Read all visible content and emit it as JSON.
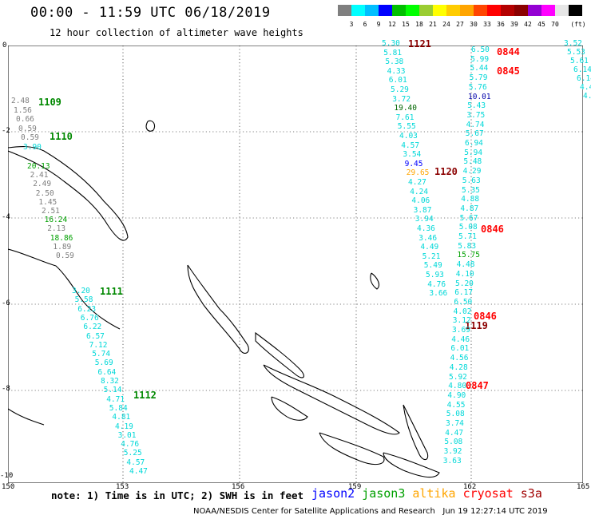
{
  "header": {
    "title": "00:00 - 11:59 UTC 06/18/2019",
    "subtitle": "12 hour collection of altimeter wave heights"
  },
  "colorbar": {
    "unit": "(ft)",
    "colors": [
      "#7f7f7f",
      "#00ffff",
      "#00bfff",
      "#0000ff",
      "#00bf00",
      "#00ff00",
      "#9acd32",
      "#ffff00",
      "#ffcc00",
      "#ffa500",
      "#ff4500",
      "#ff0000",
      "#b40000",
      "#8b0000",
      "#9400d3",
      "#ff00ff",
      "#e6e6e6",
      "#000000"
    ],
    "labels": [
      "3",
      "6",
      "9",
      "12",
      "15",
      "18",
      "21",
      "24",
      "27",
      "30",
      "33",
      "36",
      "39",
      "42",
      "45",
      "70"
    ]
  },
  "axes": {
    "lon_ticks": [
      "150",
      "153",
      "156",
      "159",
      "162",
      "165"
    ],
    "lat_ticks": [
      "0",
      "-2",
      "-4",
      "-6",
      "-8",
      "-10"
    ]
  },
  "tracks": {
    "jason3_west_upper": {
      "pass": "1109",
      "values": [
        "2.48",
        "1.56",
        "0.66",
        "0.59",
        "0.59",
        "3.90"
      ],
      "pass2": "1110",
      "values2": [
        "20.13",
        "2.41",
        "2.49",
        "2.50",
        "1.45",
        "2.51",
        "16.24",
        "2.13",
        "18.86",
        "1.89",
        "0.59"
      ]
    },
    "jason3_west_lower": {
      "pass": "1111",
      "values": [
        "3.20",
        "5.58",
        "6.23",
        "6.76",
        "6.22",
        "6.57",
        "7.12",
        "5.74",
        "5.69",
        "6.64",
        "8.32",
        "5.14",
        "4.71",
        "5.84",
        "4.81",
        "4.19",
        "3.01",
        "4.76",
        "5.25",
        "4.57",
        "4.47"
      ],
      "pass2": "1112"
    },
    "jason3_east": {
      "pass": "1121",
      "values": [
        "5.30",
        "5.81",
        "5.38",
        "4.33",
        "6.01",
        "5.29",
        "3.72",
        "19.40",
        "7.61",
        "5.55",
        "4.03",
        "4.57",
        "3.54",
        "9.45",
        "29.65",
        "4.27",
        "4.24",
        "4.06",
        "3.87",
        "3.94",
        "4.36",
        "3.46",
        "4.49",
        "5.21",
        "5.49",
        "5.93",
        "4.76",
        "3.66"
      ],
      "pass2": "1120",
      "pass3": "1119"
    },
    "cryosat": {
      "passes": [
        "0844",
        "0845",
        "0846",
        "0846",
        "0847"
      ],
      "values": [
        "6.50",
        "5.99",
        "5.44",
        "5.79",
        "5.76",
        "10.01",
        "5.43",
        "3.75",
        "4.74",
        "5.67",
        "6.94",
        "5.94",
        "5.48",
        "4.29",
        "5.63",
        "5.35",
        "4.88",
        "4.87",
        "5.67",
        "5.08",
        "5.71",
        "5.83",
        "15.75",
        "4.48",
        "4.10",
        "5.20",
        "6.17",
        "6.50",
        "4.02",
        "3.12",
        "3.69",
        "4.46",
        "6.01",
        "4.56",
        "4.28",
        "5.92",
        "4.80",
        "4.90",
        "4.55",
        "5.08",
        "3.74",
        "4.47",
        "5.08",
        "3.92",
        "3.63"
      ]
    },
    "far_east": {
      "values": [
        "3.52",
        "5.53",
        "5.61",
        "6.14",
        "6.14",
        "4.44",
        "4.77"
      ]
    }
  },
  "note": "note: 1) Time is in UTC; 2) SWH is in feet",
  "satellites": [
    {
      "name": "jason2",
      "color": "#0000ff"
    },
    {
      "name": "jason3",
      "color": "#00a000"
    },
    {
      "name": "altika",
      "color": "#ffa500"
    },
    {
      "name": "cryosat",
      "color": "#ff0000"
    },
    {
      "name": "s3a",
      "color": "#a00000"
    }
  ],
  "footer": "NOAA/NESDIS Center for Satellite Applications and Research   Jun 19 12:27:14 UTC 2019"
}
